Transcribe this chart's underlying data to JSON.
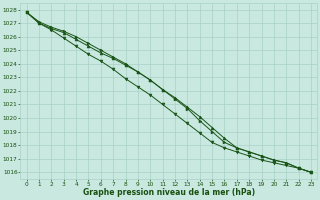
{
  "x": [
    0,
    1,
    2,
    3,
    4,
    5,
    6,
    7,
    8,
    9,
    10,
    11,
    12,
    13,
    14,
    15,
    16,
    17,
    18,
    19,
    20,
    21,
    22,
    23
  ],
  "line1": [
    1027.8,
    1027.0,
    1026.6,
    1026.3,
    1025.8,
    1025.3,
    1024.8,
    1024.4,
    1023.9,
    1023.4,
    1022.8,
    1022.1,
    1021.5,
    1020.8,
    1020.1,
    1019.3,
    1018.5,
    1017.8,
    1017.5,
    1017.2,
    1016.9,
    1016.7,
    1016.3,
    1016.0
  ],
  "line2": [
    1027.8,
    1027.1,
    1026.7,
    1026.4,
    1026.0,
    1025.5,
    1025.0,
    1024.5,
    1024.0,
    1023.4,
    1022.8,
    1022.1,
    1021.4,
    1020.7,
    1019.8,
    1019.0,
    1018.2,
    1017.8,
    1017.5,
    1017.2,
    1016.9,
    1016.7,
    1016.3,
    1016.0
  ],
  "line3": [
    1027.8,
    1027.0,
    1026.5,
    1025.9,
    1025.3,
    1024.7,
    1024.2,
    1023.6,
    1022.9,
    1022.3,
    1021.7,
    1021.0,
    1020.3,
    1019.6,
    1018.9,
    1018.2,
    1017.8,
    1017.5,
    1017.2,
    1016.9,
    1016.7,
    1016.5,
    1016.3,
    1016.0
  ],
  "bg_color": "#c8e8e0",
  "grid_color": "#a8d0c8",
  "line_color": "#1a5518",
  "marker_color": "#1a5518",
  "text_color": "#1a5010",
  "xlabel": "Graphe pression niveau de la mer (hPa)",
  "ylim": [
    1015.5,
    1028.5
  ],
  "xlim": [
    -0.5,
    23.5
  ],
  "yticks": [
    1016,
    1017,
    1018,
    1019,
    1020,
    1021,
    1022,
    1023,
    1024,
    1025,
    1026,
    1027,
    1028
  ],
  "xticks": [
    0,
    1,
    2,
    3,
    4,
    5,
    6,
    7,
    8,
    9,
    10,
    11,
    12,
    13,
    14,
    15,
    16,
    17,
    18,
    19,
    20,
    21,
    22,
    23
  ]
}
